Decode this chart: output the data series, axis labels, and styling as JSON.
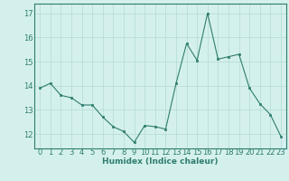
{
  "x": [
    0,
    1,
    2,
    3,
    4,
    5,
    6,
    7,
    8,
    9,
    10,
    11,
    12,
    13,
    14,
    15,
    16,
    17,
    18,
    19,
    20,
    21,
    22,
    23
  ],
  "y": [
    13.9,
    14.1,
    13.6,
    13.5,
    13.2,
    13.2,
    12.7,
    12.3,
    12.1,
    11.65,
    12.35,
    12.3,
    12.2,
    14.1,
    15.75,
    15.05,
    17.0,
    15.1,
    15.2,
    15.3,
    13.9,
    13.25,
    12.8,
    11.9
  ],
  "line_color": "#2e7d6e",
  "marker_color": "#2e7d6e",
  "bg_color": "#d4f0ed",
  "grid_color": "#b8ddd9",
  "xlabel": "Humidex (Indice chaleur)",
  "ylim": [
    11.4,
    17.4
  ],
  "xlim": [
    -0.5,
    23.5
  ],
  "yticks": [
    12,
    13,
    14,
    15,
    16,
    17
  ],
  "xticks": [
    0,
    1,
    2,
    3,
    4,
    5,
    6,
    7,
    8,
    9,
    10,
    11,
    12,
    13,
    14,
    15,
    16,
    17,
    18,
    19,
    20,
    21,
    22,
    23
  ],
  "xtick_labels": [
    "0",
    "1",
    "2",
    "3",
    "4",
    "5",
    "6",
    "7",
    "8",
    "9",
    "10",
    "11",
    "12",
    "13",
    "14",
    "15",
    "16",
    "17",
    "18",
    "19",
    "20",
    "21",
    "22",
    "23"
  ]
}
